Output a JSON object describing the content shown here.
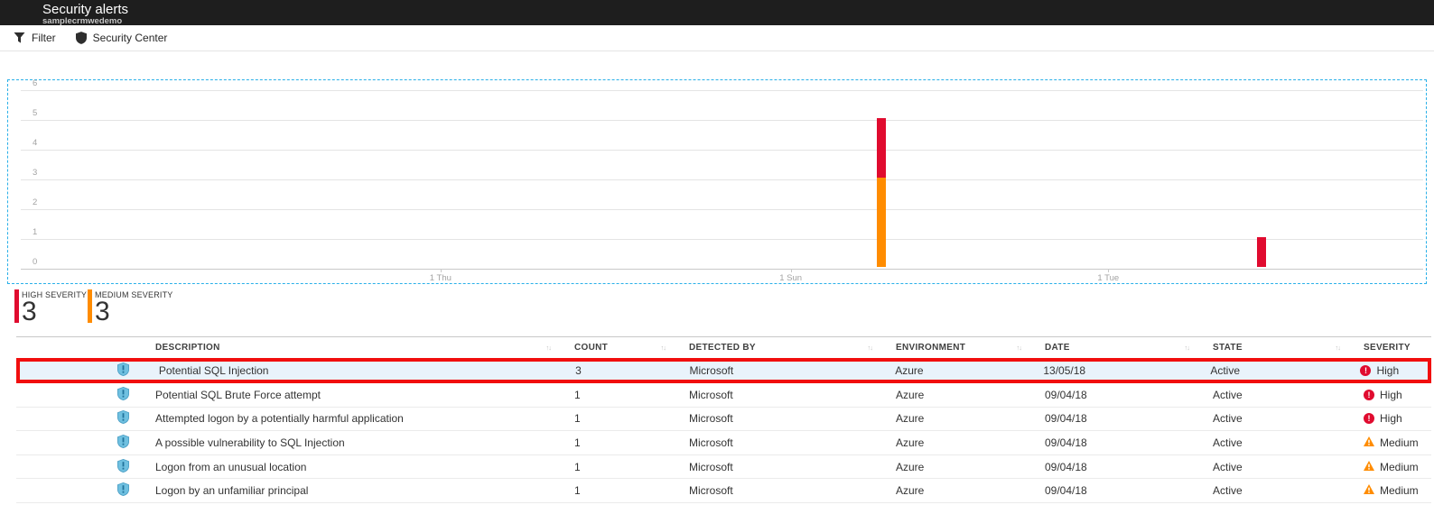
{
  "blade": {
    "title": "Security alerts",
    "subtitle": "samplecrmwedemo"
  },
  "toolbar": {
    "items": [
      {
        "icon": "filter-icon",
        "label": "Filter"
      },
      {
        "icon": "shield-icon",
        "label": "Security Center"
      }
    ]
  },
  "chart_data": {
    "type": "bar",
    "stacked": true,
    "grid": true,
    "ylim": [
      0,
      6
    ],
    "y_ticks": [
      0,
      1,
      2,
      3,
      4,
      5,
      6
    ],
    "x_ticks": [
      {
        "label": "1 Thu",
        "pos": 0.305
      },
      {
        "label": "1 Sun",
        "pos": 0.552
      },
      {
        "label": "1 Tue",
        "pos": 0.776
      }
    ],
    "series": [
      {
        "name": "High severity",
        "color": "#e00b2f",
        "total": 3
      },
      {
        "name": "Medium severity",
        "color": "#ff8c00",
        "total": 3
      }
    ],
    "bars": [
      {
        "pos": 0.616,
        "segments": [
          {
            "series": "Medium severity",
            "value": 3
          },
          {
            "series": "High severity",
            "value": 2
          }
        ]
      },
      {
        "pos": 0.884,
        "segments": [
          {
            "series": "High severity",
            "value": 1
          }
        ]
      }
    ],
    "selection_border": "dashed-blue"
  },
  "summary_stats": [
    {
      "label": "HIGH SEVERITY",
      "value": "3",
      "color": "#e00b2f"
    },
    {
      "label": "MEDIUM SEVERITY",
      "value": "3",
      "color": "#ff8c00"
    }
  ],
  "table": {
    "columns": [
      {
        "label": "",
        "sortable": false
      },
      {
        "label": "DESCRIPTION",
        "sortable": true
      },
      {
        "label": "COUNT",
        "sortable": true
      },
      {
        "label": "DETECTED BY",
        "sortable": true
      },
      {
        "label": "ENVIRONMENT",
        "sortable": true
      },
      {
        "label": "DATE",
        "sortable": true
      },
      {
        "label": "STATE",
        "sortable": true
      },
      {
        "label": "SEVERITY",
        "sortable": false
      }
    ],
    "rows": [
      {
        "icon": "alert-shield-icon",
        "description": "Potential SQL Injection",
        "count": "3",
        "detected_by": "Microsoft",
        "environment": "Azure",
        "date": "13/05/18",
        "state": "Active",
        "severity": {
          "label": "High",
          "icon": "error-circle-icon",
          "color": "#e00b2f"
        },
        "selected": true
      },
      {
        "icon": "alert-shield-icon",
        "description": "Potential SQL Brute Force attempt",
        "count": "1",
        "detected_by": "Microsoft",
        "environment": "Azure",
        "date": "09/04/18",
        "state": "Active",
        "severity": {
          "label": "High",
          "icon": "error-circle-icon",
          "color": "#e00b2f"
        },
        "selected": false
      },
      {
        "icon": "alert-shield-icon",
        "description": "Attempted logon by a potentially harmful application",
        "count": "1",
        "detected_by": "Microsoft",
        "environment": "Azure",
        "date": "09/04/18",
        "state": "Active",
        "severity": {
          "label": "High",
          "icon": "error-circle-icon",
          "color": "#e00b2f"
        },
        "selected": false
      },
      {
        "icon": "alert-shield-icon",
        "description": "A possible vulnerability to SQL Injection",
        "count": "1",
        "detected_by": "Microsoft",
        "environment": "Azure",
        "date": "09/04/18",
        "state": "Active",
        "severity": {
          "label": "Medium",
          "icon": "warning-triangle-icon",
          "color": "#ff8c00"
        },
        "selected": false
      },
      {
        "icon": "alert-shield-icon",
        "description": "Logon from an unusual location",
        "count": "1",
        "detected_by": "Microsoft",
        "environment": "Azure",
        "date": "09/04/18",
        "state": "Active",
        "severity": {
          "label": "Medium",
          "icon": "warning-triangle-icon",
          "color": "#ff8c00"
        },
        "selected": false
      },
      {
        "icon": "alert-shield-icon",
        "description": "Logon by an unfamiliar principal",
        "count": "1",
        "detected_by": "Microsoft",
        "environment": "Azure",
        "date": "09/04/18",
        "state": "Active",
        "severity": {
          "label": "Medium",
          "icon": "warning-triangle-icon",
          "color": "#ff8c00"
        },
        "selected": false
      }
    ]
  },
  "colors": {
    "high_severity": "#e00b2f",
    "medium_severity": "#ff8c00",
    "selected_row_border": "#f10e0e",
    "selected_row_bg": "#e9f3fb",
    "chart_selection_border": "#29b0e8"
  }
}
